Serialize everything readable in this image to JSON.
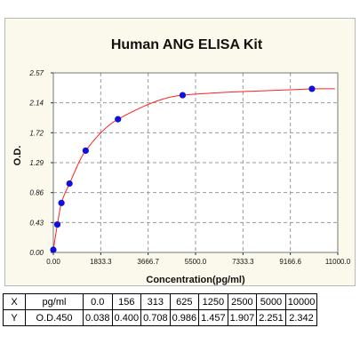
{
  "chart_data": {
    "type": "scatter",
    "title": "Human ANG ELISA Kit",
    "xlabel": "Concentration(pg/ml)",
    "ylabel": "O.D.",
    "xlim": [
      0,
      11000
    ],
    "ylim": [
      0,
      2.57
    ],
    "x_ticks": [
      "0.00",
      "1833.3",
      "3666.7",
      "5500.0",
      "7333.3",
      "9166.6",
      "11000.0"
    ],
    "y_ticks": [
      "0.00",
      "0.43",
      "0.86",
      "1.29",
      "1.72",
      "2.14",
      "2.57"
    ],
    "grid": "dashed",
    "series": [
      {
        "x": [
          0,
          156,
          313,
          625,
          1250,
          2500,
          5000,
          10000
        ],
        "y": [
          0.038,
          0.4,
          0.708,
          0.986,
          1.457,
          1.907,
          2.251,
          2.342
        ],
        "color": "#1010dd"
      }
    ],
    "fit_curve": {
      "color": "#ff2020"
    }
  },
  "table": {
    "rows": [
      [
        "X",
        "pg/ml",
        "0.0",
        "156",
        "313",
        "625",
        "1250",
        "2500",
        "5000",
        "10000"
      ],
      [
        "Y",
        "O.D.450",
        "0.038",
        "0.400",
        "0.708",
        "0.986",
        "1.457",
        "1.907",
        "2.251",
        "2.342"
      ]
    ]
  }
}
